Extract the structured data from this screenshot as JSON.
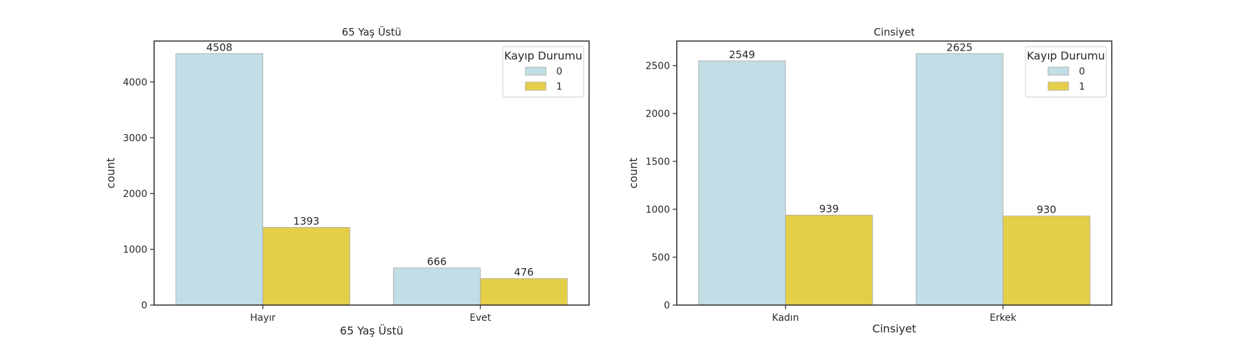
{
  "chart_data": [
    {
      "type": "bar",
      "title": "65 Yaş Üstü",
      "xlabel": "65 Yaş Üstü",
      "ylabel": "count",
      "categories": [
        "Hayır",
        "Evet"
      ],
      "ylim": [
        0,
        4733
      ],
      "yticks": [
        0,
        1000,
        2000,
        3000,
        4000
      ],
      "legend": {
        "title": "Kayıp Durumu",
        "placement": "top-right"
      },
      "series": [
        {
          "name": "0",
          "color": "#c1dde6",
          "values": [
            4508,
            666
          ]
        },
        {
          "name": "1",
          "color": "#e5cf49",
          "values": [
            1393,
            476
          ]
        }
      ],
      "grid": false
    },
    {
      "type": "bar",
      "title": "Cinsiyet",
      "xlabel": "Cinsiyet",
      "ylabel": "count",
      "categories": [
        "Kadın",
        "Erkek"
      ],
      "ylim": [
        0,
        2756
      ],
      "yticks": [
        0,
        500,
        1000,
        1500,
        2000,
        2500
      ],
      "legend": {
        "title": "Kayıp Durumu",
        "placement": "top-right"
      },
      "series": [
        {
          "name": "0",
          "color": "#c1dde6",
          "values": [
            2549,
            2625
          ]
        },
        {
          "name": "1",
          "color": "#e5cf49",
          "values": [
            939,
            930
          ]
        }
      ],
      "grid": false
    }
  ]
}
